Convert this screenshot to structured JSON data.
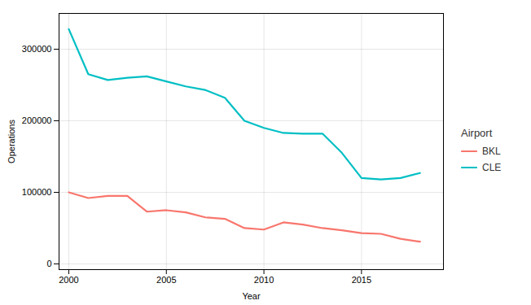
{
  "chart_data": {
    "type": "line",
    "xlabel": "Year",
    "ylabel": "Operations",
    "legend_title": "Airport",
    "legend": "right",
    "x": [
      2000,
      2001,
      2002,
      2003,
      2004,
      2005,
      2006,
      2007,
      2008,
      2009,
      2010,
      2011,
      2012,
      2013,
      2014,
      2015,
      2016,
      2017,
      2018
    ],
    "series": [
      {
        "name": "BKL",
        "color": "#F8766D",
        "values": [
          100000,
          92000,
          95000,
          95000,
          73000,
          75000,
          72000,
          65000,
          63000,
          50000,
          48000,
          58000,
          55000,
          50000,
          47000,
          43000,
          42000,
          35000,
          31000
        ]
      },
      {
        "name": "CLE",
        "color": "#00BFC4",
        "values": [
          328000,
          265000,
          257000,
          260000,
          262000,
          255000,
          248000,
          243000,
          232000,
          200000,
          190000,
          183000,
          182000,
          182000,
          155000,
          120000,
          118000,
          120000,
          127000
        ]
      }
    ],
    "xlim": [
      1999.5,
      2019.2
    ],
    "xticks": [
      2000,
      2005,
      2010,
      2015
    ],
    "ylim": [
      -8000,
      350000
    ],
    "yticks": [
      0,
      100000,
      200000,
      300000
    ],
    "grid": true
  }
}
